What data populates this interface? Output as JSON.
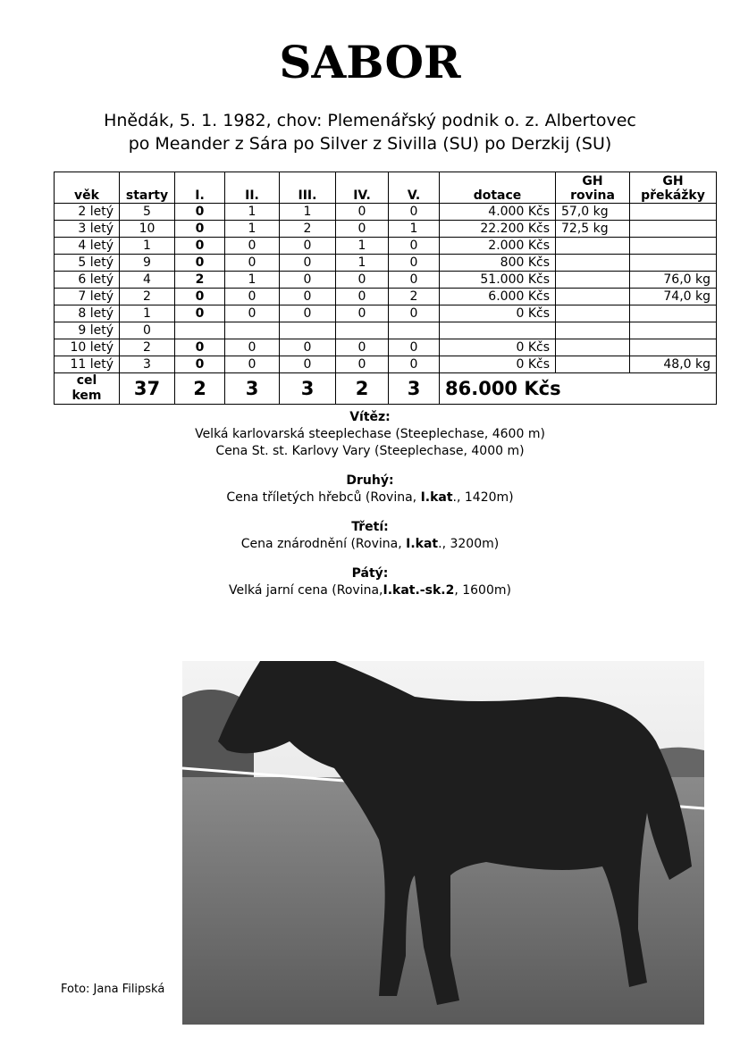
{
  "title": "SABOR",
  "line1": "Hnědák,  5. 1. 1982,  chov: Plemenářský podnik o. z.  Albertovec",
  "line2": "po Meander z Sára po Silver z Sivilla (SU) po Derzkij (SU)",
  "table": {
    "headers": [
      "věk",
      "starty",
      "I.",
      "II.",
      "III.",
      "IV.",
      "V.",
      "dotace",
      "GH rovina",
      "GH překážky"
    ],
    "rows": [
      [
        "2 letý",
        "5",
        "0",
        "1",
        "1",
        "0",
        "0",
        "4.000 Kčs",
        "57,0 kg",
        ""
      ],
      [
        "3 letý",
        "10",
        "0",
        "1",
        "2",
        "0",
        "1",
        "22.200 Kčs",
        "72,5 kg",
        ""
      ],
      [
        "4 letý",
        "1",
        "0",
        "0",
        "0",
        "1",
        "0",
        "2.000 Kčs",
        "",
        ""
      ],
      [
        "5 letý",
        "9",
        "0",
        "0",
        "0",
        "1",
        "0",
        "800 Kčs",
        "",
        ""
      ],
      [
        "6 letý",
        "4",
        "2",
        "1",
        "0",
        "0",
        "0",
        "51.000 Kčs",
        "",
        "76,0 kg"
      ],
      [
        "7 letý",
        "2",
        "0",
        "0",
        "0",
        "0",
        "2",
        "6.000 Kčs",
        "",
        "74,0 kg"
      ],
      [
        "8 letý",
        "1",
        "0",
        "0",
        "0",
        "0",
        "0",
        "0 Kčs",
        "",
        ""
      ],
      [
        "9 letý",
        "0",
        "",
        "",
        "",
        "",
        "",
        "",
        "",
        ""
      ],
      [
        "10 letý",
        "2",
        "0",
        "0",
        "0",
        "0",
        "0",
        "0 Kčs",
        "",
        ""
      ],
      [
        "11 letý",
        "3",
        "0",
        "0",
        "0",
        "0",
        "0",
        "0 Kčs",
        "",
        "48,0 kg"
      ]
    ],
    "total": [
      "cel kem",
      "37",
      "2",
      "3",
      "3",
      "2",
      "3",
      "86.000 Kčs"
    ]
  },
  "achievements": {
    "winner_h": "Vítěz:",
    "winner": [
      "Velká karlovarská steeplechase  (Steeplechase, 4600 m)",
      "Cena St. st. Karlovy Vary (Steeplechase, 4000 m)"
    ],
    "second_h": "Druhý:",
    "second": {
      "a": "Cena tříletých hřebců (Rovina, ",
      "b": "I.kat",
      "c": "., 1420m)"
    },
    "third_h": "Třetí:",
    "third": {
      "a": "Cena znárodnění (Rovina, ",
      "b": "I.kat",
      "c": "., 3200m)"
    },
    "fifth_h": "Pátý:",
    "fifth": {
      "a": "Velká jarní cena (Rovina,",
      "b": "I.kat.-sk.2",
      "c": ", 1600m)"
    }
  },
  "photo_credit": "Foto: Jana Filipská"
}
